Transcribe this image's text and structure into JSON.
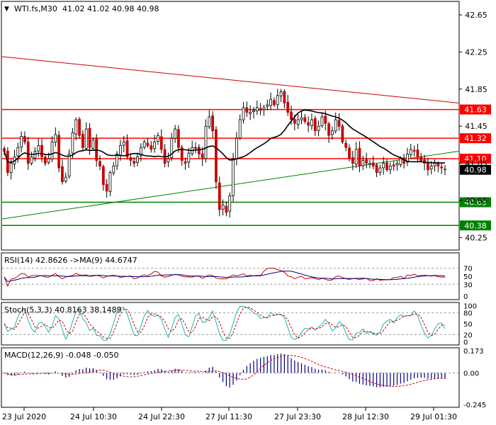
{
  "header": {
    "symbol_label": "WTI.fs,M30",
    "ohlc_label": "41.02 41.02 40.98 40.98"
  },
  "colors": {
    "bull": "#000000",
    "bear": "#cc0000",
    "level": "#ff0000",
    "support": "#008000",
    "resistance_trend": "#cc0000",
    "ma": "#000000",
    "rsi_main": "#cc0000",
    "rsi_signal": "#000080",
    "stoch_main": "#20b2aa",
    "stoch_signal": "#cc0000",
    "macd_hist": "#000080",
    "macd_signal": "#cc0000"
  },
  "chart_data": [
    {
      "type": "candlestick",
      "panel": "price",
      "ylim": [
        40.13,
        42.78
      ],
      "y_ticks": [
        "42.65",
        "42.25",
        "41.85",
        "41.45",
        "41.05",
        "40.65",
        "40.25"
      ],
      "x_ticks": [
        "23 Jul 2020",
        "24 Jul 10:30",
        "24 Jul 22:30",
        "27 Jul 11:30",
        "27 Jul 23:30",
        "28 Jul 12:30",
        "29 Jul 01:30"
      ],
      "last_price_label": "40.98",
      "horizontal_levels": [
        {
          "value": 41.63,
          "label": "41.63",
          "color": "red"
        },
        {
          "value": 41.32,
          "label": "41.32",
          "color": "red"
        },
        {
          "value": 41.1,
          "label": "41.10",
          "color": "red"
        },
        {
          "value": 40.63,
          "label": "40.63",
          "color": "green"
        },
        {
          "value": 40.38,
          "label": "40.38",
          "color": "green"
        }
      ],
      "trendlines": [
        {
          "name": "resistance",
          "from": [
            0,
            42.2
          ],
          "to": [
            129,
            41.7
          ]
        },
        {
          "name": "support",
          "from": [
            0,
            40.45
          ],
          "to": [
            129,
            41.18
          ]
        }
      ],
      "close": [
        41.18,
        40.95,
        41.05,
        41.12,
        41.22,
        41.34,
        41.28,
        41.05,
        41.12,
        41.18,
        41.24,
        41.12,
        41.05,
        41.1,
        41.28,
        41.36,
        41.0,
        40.85,
        40.9,
        41.15,
        41.38,
        41.52,
        41.35,
        41.22,
        41.42,
        41.22,
        41.3,
        41.08,
        41.02,
        40.82,
        40.75,
        40.95,
        41.02,
        41.15,
        41.24,
        41.28,
        41.12,
        41.08,
        41.05,
        41.12,
        41.22,
        41.28,
        41.24,
        41.2,
        41.28,
        41.35,
        41.2,
        41.05,
        41.1,
        41.32,
        41.42,
        41.22,
        41.08,
        41.05,
        41.16,
        41.22,
        41.22,
        41.15,
        41.1,
        41.45,
        41.55,
        41.4,
        40.85,
        40.55,
        40.6,
        40.52,
        40.7,
        41.1,
        41.32,
        41.52,
        41.65,
        41.6,
        41.6,
        41.62,
        41.65,
        41.62,
        41.65,
        41.68,
        41.74,
        41.68,
        41.78,
        41.82,
        41.7,
        41.6,
        41.52,
        41.48,
        41.52,
        41.54,
        41.5,
        41.46,
        41.52,
        41.4,
        41.45,
        41.55,
        41.48,
        41.35,
        41.4,
        41.52,
        41.45,
        41.28,
        41.22,
        41.1,
        41.05,
        41.2,
        41.02,
        41.08,
        41.05,
        41.05,
        41.02,
        40.95,
        41.0,
        41.05,
        40.98,
        41.02,
        41.02,
        41.05,
        41.1,
        41.05,
        41.15,
        41.2,
        41.18,
        41.12,
        41.08,
        41.05,
        40.98,
        41.02,
        41.05,
        41.02,
        41.0,
        40.98
      ],
      "ma_period": 20
    },
    {
      "type": "line",
      "panel": "rsi",
      "label": "RSI(14) 42.8626 ->MA(9) 44.6747",
      "series": [
        {
          "values": [
            42.8626
          ]
        },
        {
          "values": [
            44.6747
          ]
        }
      ],
      "y_ticks": [
        "70",
        "50",
        "30",
        "0"
      ],
      "ylim": [
        -5,
        105
      ],
      "guide_levels": [
        70,
        30
      ]
    },
    {
      "type": "line",
      "panel": "stochastic",
      "label": "Stoch(5,3,3) 40.8163 38.1489",
      "series": [
        {
          "values": [
            40.8163
          ]
        },
        {
          "values": [
            38.1489
          ]
        }
      ],
      "y_ticks": [
        "100",
        "80",
        "50",
        "20",
        "0"
      ],
      "ylim": [
        -5,
        105
      ],
      "guide_levels": [
        80,
        20
      ]
    },
    {
      "type": "bar",
      "panel": "macd",
      "label": "MACD(12,26,9) -0.048 -0.050",
      "series": [
        {
          "values": [
            -0.048
          ]
        },
        {
          "values": [
            -0.05
          ]
        }
      ],
      "y_ticks": [
        "0.173",
        "0.00",
        "-0.245"
      ],
      "ylim": [
        -0.245,
        0.173
      ]
    }
  ]
}
